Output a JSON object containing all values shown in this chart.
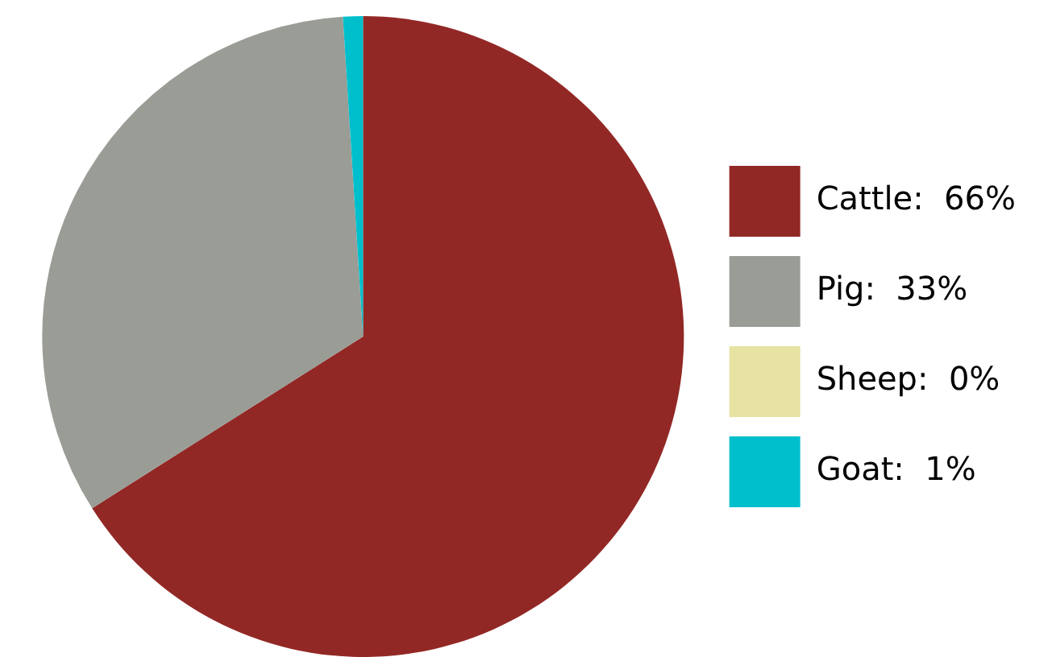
{
  "chart_data": {
    "type": "pie",
    "categories": [
      "Cattle",
      "Pig",
      "Sheep",
      "Goat"
    ],
    "values": [
      66,
      33,
      0,
      1
    ],
    "colors": [
      "#922825",
      "#9a9c96",
      "#e6e3a3",
      "#00bfcc"
    ],
    "value_labels": [
      "66%",
      "33%",
      "0%",
      "1%"
    ],
    "legend": "right"
  }
}
